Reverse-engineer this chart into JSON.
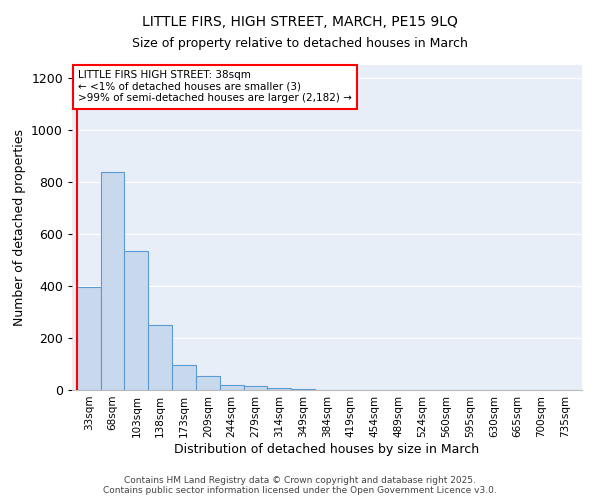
{
  "title1": "LITTLE FIRS, HIGH STREET, MARCH, PE15 9LQ",
  "title2": "Size of property relative to detached houses in March",
  "xlabel": "Distribution of detached houses by size in March",
  "ylabel": "Number of detached properties",
  "categories": [
    "33sqm",
    "68sqm",
    "103sqm",
    "138sqm",
    "173sqm",
    "209sqm",
    "244sqm",
    "279sqm",
    "314sqm",
    "349sqm",
    "384sqm",
    "419sqm",
    "454sqm",
    "489sqm",
    "524sqm",
    "560sqm",
    "595sqm",
    "630sqm",
    "665sqm",
    "700sqm",
    "735sqm"
  ],
  "values": [
    395,
    840,
    535,
    250,
    98,
    52,
    20,
    15,
    8,
    5,
    0,
    0,
    0,
    0,
    0,
    0,
    0,
    0,
    0,
    0,
    0
  ],
  "bar_color": "#c9d9ed",
  "bar_edge_color": "#5b9bd5",
  "ylim": [
    0,
    1250
  ],
  "yticks": [
    0,
    200,
    400,
    600,
    800,
    1000,
    1200
  ],
  "annotation_text": "LITTLE FIRS HIGH STREET: 38sqm\n← <1% of detached houses are smaller (3)\n>99% of semi-detached houses are larger (2,182) →",
  "annotation_box_color": "#ffffff",
  "annotation_edge_color": "#ff0000",
  "red_line_color": "#ff0000",
  "background_color": "#e8eef8",
  "grid_color": "#ffffff",
  "footer1": "Contains HM Land Registry data © Crown copyright and database right 2025.",
  "footer2": "Contains public sector information licensed under the Open Government Licence v3.0."
}
